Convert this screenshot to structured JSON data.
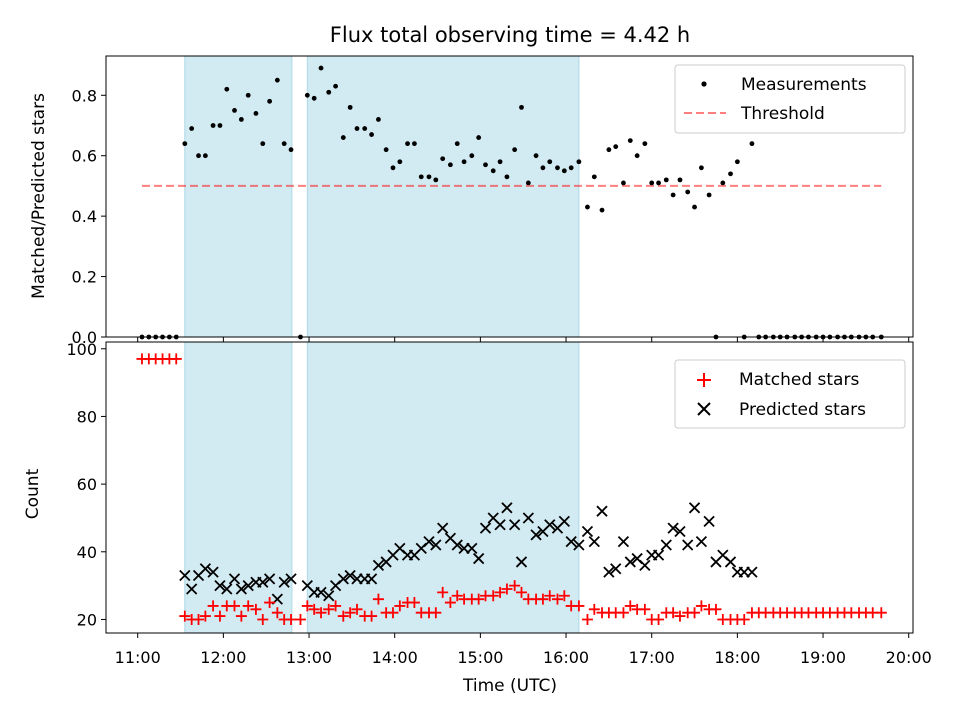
{
  "title": "Flux total observing time = 4.42 h",
  "colors": {
    "shade": "#add8e6",
    "measurement": "#000000",
    "threshold": "#ff0000",
    "matched": "#ff0000",
    "predicted": "#000000"
  },
  "top": {
    "ylabel": "Matched/Predicted stars",
    "ylim": [
      0,
      0.93
    ],
    "yticks": [
      "0.0",
      "0.2",
      "0.4",
      "0.6",
      "0.8"
    ],
    "legend": {
      "measurements": "Measurements",
      "threshold": "Threshold"
    }
  },
  "bottom": {
    "ylabel": "Count",
    "ylim": [
      16,
      102
    ],
    "yticks": [
      "20",
      "40",
      "60",
      "80",
      "100"
    ],
    "legend": {
      "matched": "Matched stars",
      "predicted": "Predicted stars"
    }
  },
  "xaxis": {
    "xlabel": "Time (UTC)",
    "xticks": [
      "11:00",
      "12:00",
      "13:00",
      "14:00",
      "15:00",
      "16:00",
      "17:00",
      "18:00",
      "19:00",
      "20:00"
    ]
  },
  "chart_data": [
    {
      "type": "scatter",
      "panel": "top",
      "x_unit": "hours UTC",
      "xlim": [
        10.63,
        20.05
      ],
      "ylim": [
        0,
        0.93
      ],
      "shaded_intervals": [
        [
          11.55,
          12.8
        ],
        [
          12.98,
          16.15
        ]
      ],
      "threshold": {
        "y": 0.5,
        "x_range": [
          11.05,
          19.68
        ],
        "style": "dashed"
      },
      "series": [
        {
          "name": "Measurements",
          "x": [
            11.05,
            11.13,
            11.21,
            11.29,
            11.37,
            11.45,
            11.55,
            11.63,
            11.71,
            11.79,
            11.88,
            11.96,
            12.04,
            12.13,
            12.21,
            12.29,
            12.38,
            12.46,
            12.54,
            12.63,
            12.71,
            12.79,
            12.9,
            12.98,
            13.06,
            13.14,
            13.23,
            13.31,
            13.4,
            13.48,
            13.56,
            13.65,
            13.73,
            13.81,
            13.9,
            13.98,
            14.06,
            14.15,
            14.23,
            14.31,
            14.4,
            14.48,
            14.56,
            14.65,
            14.73,
            14.81,
            14.9,
            14.98,
            15.06,
            15.15,
            15.23,
            15.31,
            15.4,
            15.48,
            15.56,
            15.65,
            15.73,
            15.81,
            15.9,
            15.98,
            16.06,
            16.15,
            16.25,
            16.33,
            16.42,
            16.5,
            16.58,
            16.67,
            16.75,
            16.83,
            16.92,
            17.0,
            17.08,
            17.17,
            17.25,
            17.33,
            17.42,
            17.5,
            17.58,
            17.67,
            17.75,
            17.83,
            17.92,
            18.0,
            18.08,
            18.17,
            18.25,
            18.33,
            18.42,
            18.5,
            18.58,
            18.67,
            18.75,
            18.83,
            18.92,
            19.0,
            19.08,
            19.17,
            19.25,
            19.33,
            19.42,
            19.5,
            19.58,
            19.68
          ],
          "y": [
            0,
            0,
            0,
            0,
            0,
            0,
            0.64,
            0.69,
            0.6,
            0.6,
            0.7,
            0.7,
            0.82,
            0.75,
            0.72,
            0.8,
            0.74,
            0.64,
            0.78,
            0.85,
            0.64,
            0.62,
            0.0,
            0.8,
            0.79,
            0.89,
            0.81,
            0.83,
            0.66,
            0.76,
            0.69,
            0.69,
            0.67,
            0.72,
            0.62,
            0.56,
            0.58,
            0.64,
            0.64,
            0.53,
            0.53,
            0.52,
            0.59,
            0.57,
            0.64,
            0.58,
            0.6,
            0.66,
            0.57,
            0.55,
            0.58,
            0.53,
            0.62,
            0.76,
            0.51,
            0.6,
            0.56,
            0.58,
            0.56,
            0.55,
            0.56,
            0.58,
            0.43,
            0.53,
            0.42,
            0.62,
            0.63,
            0.51,
            0.65,
            0.6,
            0.64,
            0.51,
            0.51,
            0.52,
            0.47,
            0.52,
            0.48,
            0.43,
            0.56,
            0.47,
            0.0,
            0.51,
            0.54,
            0.58,
            0.0,
            0.64,
            0,
            0,
            0,
            0,
            0,
            0,
            0,
            0,
            0,
            0,
            0,
            0,
            0,
            0,
            0,
            0,
            0,
            0
          ]
        },
        {
          "name": "Threshold",
          "x": [
            11.05,
            19.68
          ],
          "y": [
            0.5,
            0.5
          ]
        }
      ]
    },
    {
      "type": "scatter",
      "panel": "bottom",
      "x_unit": "hours UTC",
      "xlim": [
        10.63,
        20.05
      ],
      "ylim": [
        16,
        102
      ],
      "shaded_intervals": [
        [
          11.55,
          12.8
        ],
        [
          12.98,
          16.15
        ]
      ],
      "series": [
        {
          "name": "Matched stars",
          "x": [
            11.05,
            11.13,
            11.21,
            11.29,
            11.37,
            11.45,
            11.55,
            11.63,
            11.71,
            11.79,
            11.88,
            11.96,
            12.04,
            12.13,
            12.21,
            12.29,
            12.38,
            12.46,
            12.54,
            12.63,
            12.71,
            12.79,
            12.9,
            12.98,
            13.06,
            13.14,
            13.23,
            13.31,
            13.4,
            13.48,
            13.56,
            13.65,
            13.73,
            13.81,
            13.9,
            13.98,
            14.06,
            14.15,
            14.23,
            14.31,
            14.4,
            14.48,
            14.56,
            14.65,
            14.73,
            14.81,
            14.9,
            14.98,
            15.06,
            15.15,
            15.23,
            15.31,
            15.4,
            15.48,
            15.56,
            15.65,
            15.73,
            15.81,
            15.9,
            15.98,
            16.06,
            16.15,
            16.25,
            16.33,
            16.42,
            16.5,
            16.58,
            16.67,
            16.75,
            16.83,
            16.92,
            17.0,
            17.08,
            17.17,
            17.25,
            17.33,
            17.42,
            17.5,
            17.58,
            17.67,
            17.75,
            17.83,
            17.92,
            18.0,
            18.08,
            18.17,
            18.25,
            18.33,
            18.42,
            18.5,
            18.58,
            18.67,
            18.75,
            18.83,
            18.92,
            19.0,
            19.08,
            19.17,
            19.25,
            19.33,
            19.42,
            19.5,
            19.58,
            19.68
          ],
          "y": [
            97,
            97,
            97,
            97,
            97,
            97,
            21,
            20,
            20,
            21,
            24,
            21,
            24,
            24,
            21,
            24,
            23,
            20,
            25,
            22,
            20,
            20,
            20,
            24,
            23,
            22,
            23,
            24,
            21,
            22,
            23,
            21,
            21,
            26,
            22,
            22,
            24,
            25,
            25,
            22,
            22,
            22,
            28,
            25,
            27,
            26,
            26,
            26,
            27,
            27,
            28,
            29,
            30,
            28,
            26,
            26,
            26,
            27,
            26,
            27,
            24,
            24,
            20,
            23,
            22,
            22,
            22,
            22,
            24,
            23,
            23,
            20,
            20,
            22,
            22,
            21,
            22,
            22,
            24,
            23,
            23,
            20,
            20,
            20,
            20,
            22,
            22,
            22,
            22,
            22,
            22,
            22,
            22,
            22,
            22,
            22,
            22,
            22,
            22,
            22,
            22,
            22,
            22,
            22
          ]
        },
        {
          "name": "Predicted stars",
          "x": [
            11.55,
            11.63,
            11.71,
            11.79,
            11.88,
            11.96,
            12.04,
            12.13,
            12.21,
            12.29,
            12.38,
            12.46,
            12.54,
            12.63,
            12.71,
            12.79,
            12.98,
            13.06,
            13.14,
            13.23,
            13.31,
            13.4,
            13.48,
            13.56,
            13.65,
            13.73,
            13.81,
            13.9,
            13.98,
            14.06,
            14.15,
            14.23,
            14.31,
            14.4,
            14.48,
            14.56,
            14.65,
            14.73,
            14.81,
            14.9,
            14.98,
            15.06,
            15.15,
            15.23,
            15.31,
            15.4,
            15.48,
            15.56,
            15.65,
            15.73,
            15.81,
            15.9,
            15.98,
            16.06,
            16.15,
            16.25,
            16.33,
            16.42,
            16.5,
            16.58,
            16.67,
            16.75,
            16.83,
            16.92,
            17.0,
            17.08,
            17.17,
            17.25,
            17.33,
            17.42,
            17.5,
            17.58,
            17.67,
            17.75,
            17.83,
            17.92,
            18.0,
            18.08,
            18.17
          ],
          "y": [
            33,
            29,
            33,
            35,
            34,
            30,
            29,
            32,
            29,
            30,
            31,
            31,
            32,
            26,
            31,
            32,
            30,
            28,
            28,
            27,
            30,
            32,
            33,
            32,
            32,
            32,
            36,
            37,
            39,
            41,
            39,
            39,
            41,
            43,
            42,
            47,
            44,
            42,
            41,
            41,
            38,
            47,
            50,
            48,
            53,
            48,
            37,
            50,
            45,
            46,
            48,
            47,
            49,
            43,
            42,
            46,
            43,
            52,
            34,
            35,
            43,
            37,
            38,
            36,
            39,
            39,
            42,
            47,
            46,
            42,
            53,
            43,
            49,
            37,
            39,
            37,
            34,
            34,
            34
          ]
        }
      ]
    }
  ]
}
